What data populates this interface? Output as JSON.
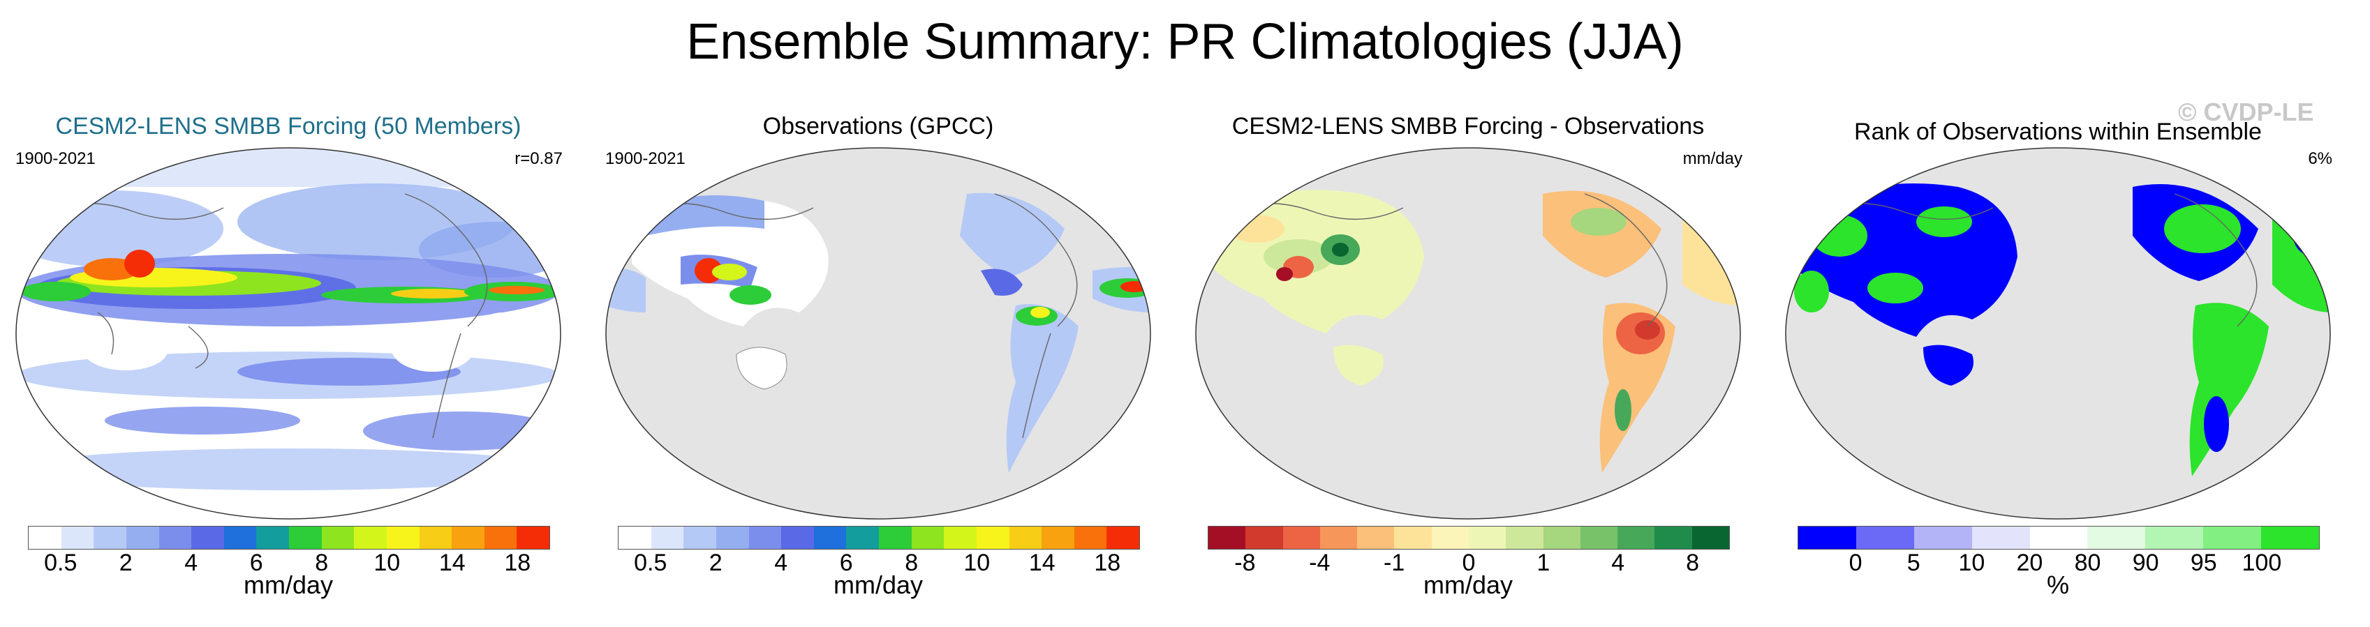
{
  "title": "Ensemble Summary: PR Climatologies (JJA)",
  "watermark": "© CVDP-LE",
  "panels": [
    {
      "title": "CESM2-LENS SMBB Forcing (50 Members)",
      "left_label": "1900-2021",
      "right_label": "r=0.87",
      "map_style": "model",
      "colorbar": {
        "colors": [
          "#ffffff",
          "#dce6fb",
          "#b5c9f6",
          "#95aef0",
          "#7c8eec",
          "#5a6ae6",
          "#1f6fdc",
          "#139d9d",
          "#2ccd38",
          "#8ee41e",
          "#d3f51a",
          "#f7f41b",
          "#f7cd16",
          "#f8a20f",
          "#f9710a",
          "#f52d06"
        ],
        "labels": [
          "0.5",
          "2",
          "4",
          "6",
          "8",
          "10",
          "14",
          "18"
        ],
        "label_positions": [
          1,
          3,
          5,
          7,
          9,
          11,
          13,
          15
        ],
        "unit": "mm/day"
      }
    },
    {
      "title": "Observations (GPCC)",
      "left_label": "1900-2021",
      "right_label": "",
      "map_style": "obs",
      "colorbar": {
        "colors": [
          "#ffffff",
          "#dce6fb",
          "#b5c9f6",
          "#95aef0",
          "#7c8eec",
          "#5a6ae6",
          "#1f6fdc",
          "#139d9d",
          "#2ccd38",
          "#8ee41e",
          "#d3f51a",
          "#f7f41b",
          "#f7cd16",
          "#f8a20f",
          "#f9710a",
          "#f52d06"
        ],
        "labels": [
          "0.5",
          "2",
          "4",
          "6",
          "8",
          "10",
          "14",
          "18"
        ],
        "label_positions": [
          1,
          3,
          5,
          7,
          9,
          11,
          13,
          15
        ],
        "unit": "mm/day"
      }
    },
    {
      "title": "CESM2-LENS SMBB Forcing - Observations",
      "left_label": "",
      "right_label": "mm/day",
      "map_style": "diff",
      "colorbar": {
        "colors": [
          "#a50f26",
          "#d13a2c",
          "#ec6444",
          "#f6965a",
          "#fbc07a",
          "#fde39a",
          "#fbf5b9",
          "#eef6b6",
          "#cde89a",
          "#a6d67e",
          "#78c26a",
          "#47a85a",
          "#1f8c4c",
          "#0a6630"
        ],
        "labels": [
          "-8",
          "-4",
          "-1",
          "0",
          "1",
          "4",
          "8"
        ],
        "label_positions": [
          1,
          3,
          5,
          7,
          9,
          11,
          13
        ],
        "unit": "mm/day"
      }
    },
    {
      "title": "Rank of Observations within Ensemble",
      "left_label": "",
      "right_label": "6%",
      "map_style": "rank",
      "colorbar": {
        "colors": [
          "#0000ff",
          "#6a6af7",
          "#b3b3f8",
          "#e3e3fb",
          "#ffffff",
          "#e3fbe3",
          "#b3f5b3",
          "#82ef82",
          "#2be42b"
        ],
        "labels": [
          "0",
          "5",
          "10",
          "20",
          "80",
          "90",
          "95",
          "100"
        ],
        "label_positions": [
          1,
          2,
          3,
          4,
          5,
          6,
          7,
          8
        ],
        "unit": "%"
      }
    }
  ]
}
